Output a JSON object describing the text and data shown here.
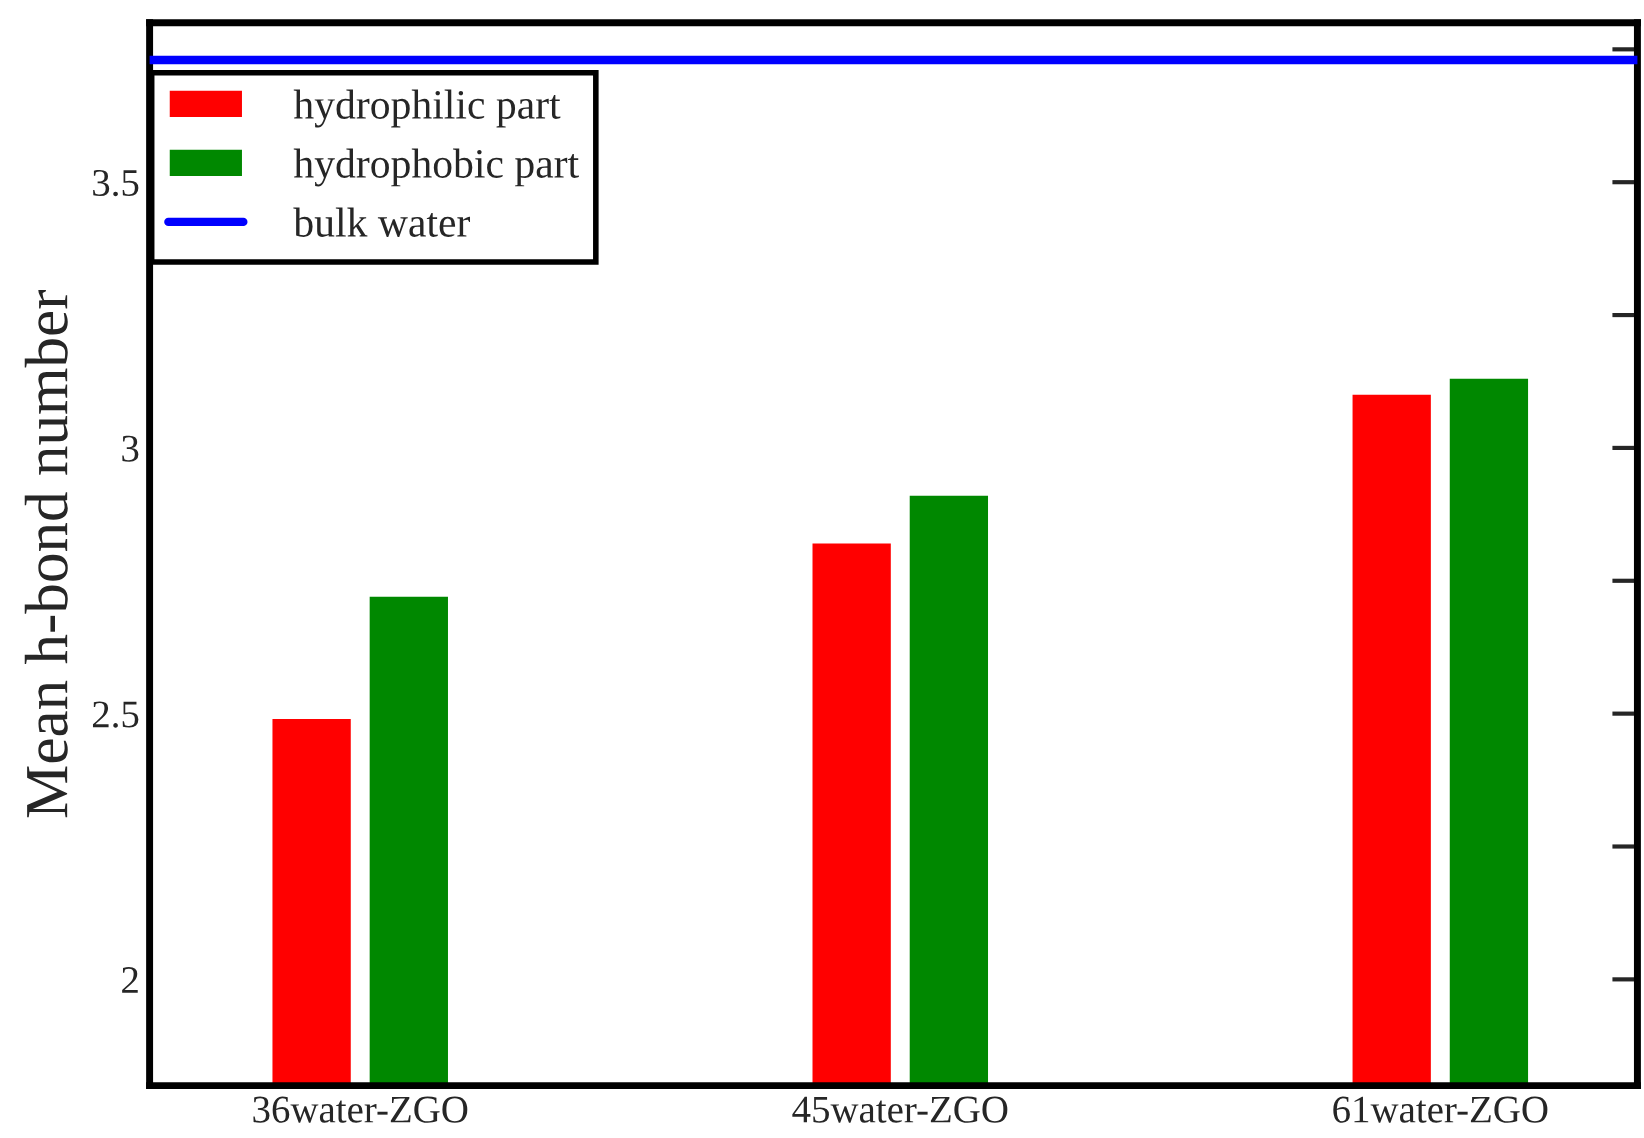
{
  "chart_data": {
    "type": "bar",
    "ylabel": "Mean h-bond number",
    "categories": [
      "36water-ZGO",
      "45water-ZGO",
      "61water-ZGO"
    ],
    "series": [
      {
        "name": "hydrophilic part",
        "color": "#ff0000",
        "values": [
          2.49,
          2.82,
          3.1
        ]
      },
      {
        "name": "hydrophobic part",
        "color": "#008800",
        "values": [
          2.72,
          2.91,
          3.13
        ]
      }
    ],
    "ref_lines": [
      {
        "axis": "y",
        "value": 3.73,
        "label": "bulk water",
        "color": "#0000ff",
        "line_style": "solid"
      }
    ],
    "ylim": [
      1.8,
      3.8
    ],
    "yticks": [
      2,
      {
        "value": 2.25,
        "label": null
      },
      2.5,
      {
        "value": 2.75,
        "label": null
      },
      3,
      {
        "value": 3.25,
        "label": null
      },
      3.5,
      {
        "value": 3.75,
        "label": null
      }
    ],
    "grid": false,
    "legend": "top left"
  }
}
